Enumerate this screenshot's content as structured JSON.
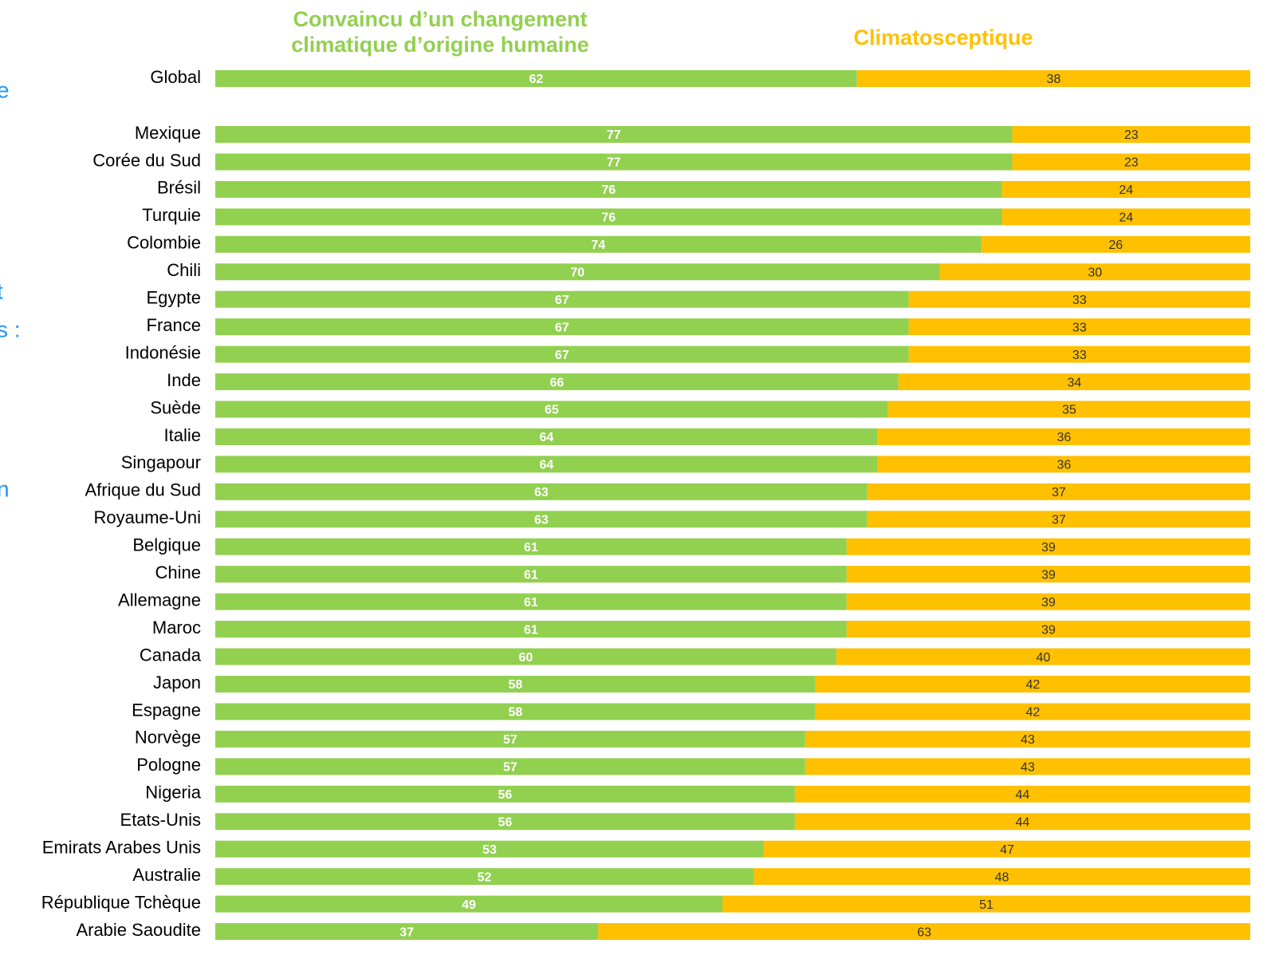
{
  "chart_data": {
    "type": "stacked-bar-horizontal",
    "categories": [
      "Global",
      "Mexique",
      "Corée du Sud",
      "Brésil",
      "Turquie",
      "Colombie",
      "Chili",
      "Egypte",
      "France",
      "Indonésie",
      "Inde",
      "Suède",
      "Italie",
      "Singapour",
      "Afrique du Sud",
      "Royaume-Uni",
      "Belgique",
      "Chine",
      "Allemagne",
      "Maroc",
      "Canada",
      "Japon",
      "Espagne",
      "Norvège",
      "Pologne",
      "Nigeria",
      "Etats-Unis",
      "Emirats Arabes Unis",
      "Australie",
      "République Tchèque",
      "Arabie Saoudite"
    ],
    "series": [
      {
        "name": "Convaincu d’un changement climatique d’origine humaine",
        "color": "#92d050",
        "values": [
          62,
          77,
          77,
          76,
          76,
          74,
          70,
          67,
          67,
          67,
          66,
          65,
          64,
          64,
          63,
          63,
          61,
          61,
          61,
          61,
          60,
          58,
          58,
          57,
          57,
          56,
          56,
          53,
          52,
          49,
          37
        ]
      },
      {
        "name": "Climatosceptique",
        "color": "#ffc000",
        "values": [
          38,
          23,
          23,
          24,
          24,
          26,
          30,
          33,
          33,
          33,
          34,
          35,
          36,
          36,
          37,
          37,
          39,
          39,
          39,
          39,
          40,
          42,
          42,
          43,
          43,
          44,
          44,
          47,
          48,
          51,
          63
        ]
      }
    ],
    "xlim": [
      0,
      100
    ],
    "annotations": [
      "e",
      "t",
      "s :",
      "n"
    ]
  }
}
